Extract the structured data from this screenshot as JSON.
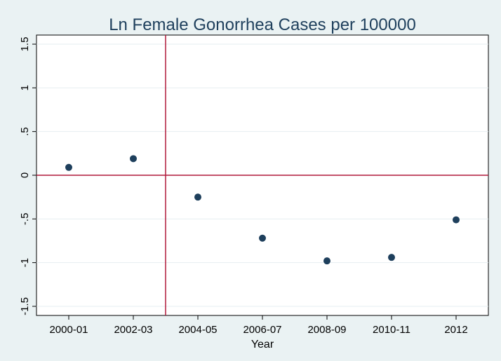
{
  "chart_data": {
    "type": "scatter",
    "title": "Ln Female Gonorrhea Cases per 100000",
    "xlabel": "Year",
    "ylabel": "",
    "categories": [
      "2000-01",
      "2002-03",
      "2004-05",
      "2006-07",
      "2008-09",
      "2010-11",
      "2012"
    ],
    "values": [
      0.09,
      0.19,
      -0.25,
      -0.72,
      -0.98,
      -0.94,
      -0.51
    ],
    "ylim": [
      -1.5,
      1.5
    ],
    "yticks": [
      1.5,
      1,
      0.5,
      0,
      -0.5,
      -1,
      -1.5
    ],
    "ytick_labels": [
      "1.5",
      "1",
      ".5",
      "0",
      "-.5",
      "-1",
      "-1.5"
    ],
    "reference_lines": {
      "horizontal_y": 0,
      "vertical_between": [
        "2002-03",
        "2004-05"
      ]
    },
    "grid": true,
    "legend": "none",
    "colors": {
      "background": "#eaf2f3",
      "plot_area": "#ffffff",
      "marker": "#1e3f5c",
      "reference_line": "#b0183a",
      "grid": "#e6eef0",
      "title": "#1e3f5c"
    }
  }
}
